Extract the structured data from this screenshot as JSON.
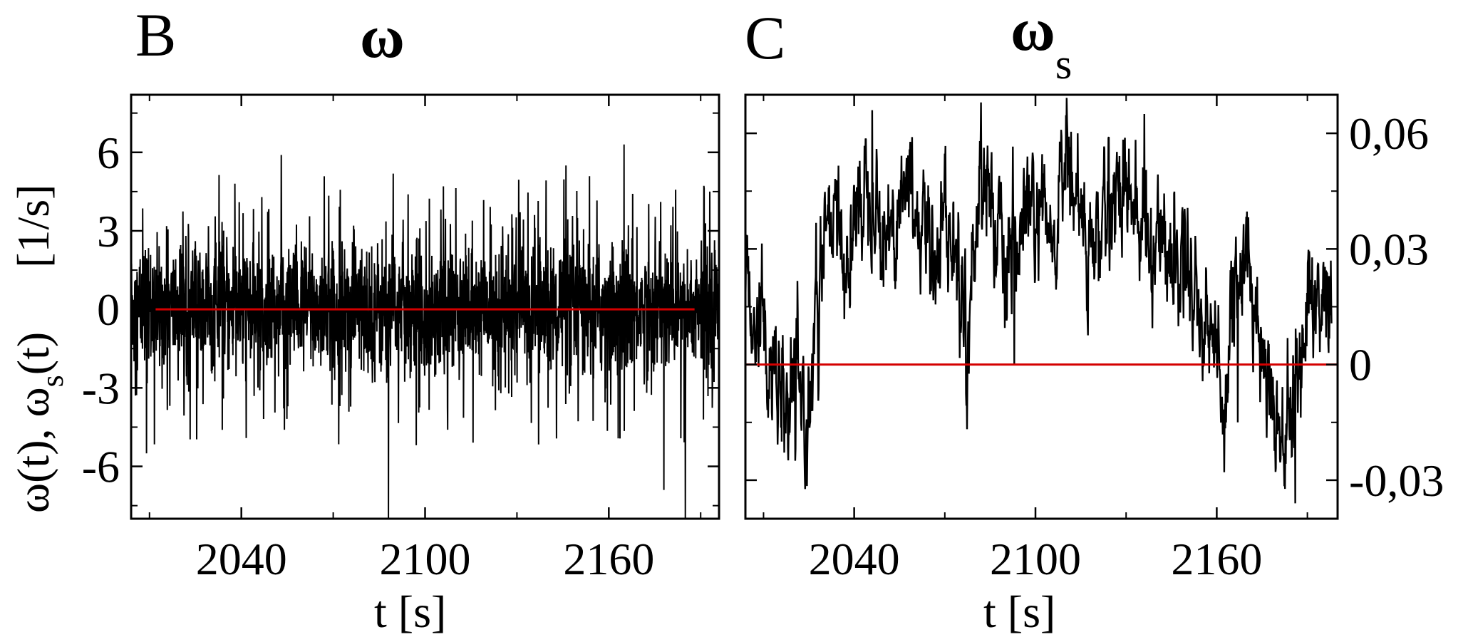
{
  "chart_data": [
    {
      "panel_label": "B",
      "title": "ω",
      "type": "line",
      "ylabel_parts": [
        "ω(t), ω",
        "s",
        "(t)",
        "[1/s]"
      ],
      "xlabel": "t  [s]",
      "xlim": [
        2004,
        2196
      ],
      "ylim": [
        -8,
        8.2
      ],
      "x_ticks": [
        2040,
        2100,
        2160
      ],
      "x_tick_labels": [
        "2040",
        "2100",
        "2160"
      ],
      "y_ticks": [
        6,
        3,
        0,
        -3,
        -6
      ],
      "y_tick_labels": [
        "6",
        "3",
        "0",
        "-3",
        "-6"
      ],
      "y_axis_side": "left",
      "series": [
        {
          "color": "#000000",
          "description_free": true,
          "x_range": [
            2004,
            2196
          ],
          "mean": 0.0,
          "typical_band": [
            -3,
            3
          ],
          "extremes": [
            {
              "x": 2009,
              "y": -5.5
            },
            {
              "x": 2053,
              "y": 5.9
            },
            {
              "x": 2088,
              "y": -8.0
            },
            {
              "x": 2106,
              "y": 4.7
            },
            {
              "x": 2146,
              "y": 5.5
            },
            {
              "x": 2165,
              "y": 6.3
            },
            {
              "x": 2178,
              "y": -6.9
            },
            {
              "x": 2185,
              "y": -8.0
            },
            {
              "x": 2193,
              "y": 4.5
            }
          ]
        },
        {
          "color": "#d40000",
          "x": [
            2012,
            2188
          ],
          "y": [
            0,
            0
          ]
        }
      ]
    },
    {
      "panel_label": "C",
      "title_parts": [
        "ω",
        "s"
      ],
      "type": "line",
      "xlabel": "t   [s]",
      "xlim": [
        2004,
        2200
      ],
      "ylim": [
        -0.04,
        0.07
      ],
      "x_ticks": [
        2040,
        2100,
        2160
      ],
      "x_tick_labels": [
        "2040",
        "2100",
        "2160"
      ],
      "y_ticks": [
        0.06,
        0.03,
        0,
        -0.03
      ],
      "y_tick_labels": [
        "0,06",
        "0,03",
        "0",
        "-0,03"
      ],
      "y_axis_side": "right",
      "series": [
        {
          "color": "#000000",
          "anchors": [
            [
              2004,
              0.02
            ],
            [
              2008,
              0.015
            ],
            [
              2012,
              0.002
            ],
            [
              2016,
              -0.012
            ],
            [
              2020,
              -0.01
            ],
            [
              2024,
              -0.015
            ],
            [
              2027,
              0.005
            ],
            [
              2030,
              0.03
            ],
            [
              2034,
              0.035
            ],
            [
              2038,
              0.025
            ],
            [
              2042,
              0.045
            ],
            [
              2046,
              0.05
            ],
            [
              2050,
              0.03
            ],
            [
              2054,
              0.04
            ],
            [
              2058,
              0.048
            ],
            [
              2062,
              0.035
            ],
            [
              2066,
              0.03
            ],
            [
              2070,
              0.04
            ],
            [
              2074,
              0.025
            ],
            [
              2078,
              0.01
            ],
            [
              2082,
              0.055
            ],
            [
              2086,
              0.04
            ],
            [
              2090,
              0.02
            ],
            [
              2094,
              0.03
            ],
            [
              2098,
              0.04
            ],
            [
              2102,
              0.035
            ],
            [
              2106,
              0.03
            ],
            [
              2110,
              0.055
            ],
            [
              2114,
              0.04
            ],
            [
              2118,
              0.028
            ],
            [
              2122,
              0.035
            ],
            [
              2126,
              0.045
            ],
            [
              2130,
              0.05
            ],
            [
              2134,
              0.035
            ],
            [
              2138,
              0.03
            ],
            [
              2142,
              0.035
            ],
            [
              2146,
              0.025
            ],
            [
              2150,
              0.03
            ],
            [
              2154,
              0.015
            ],
            [
              2158,
              0.01
            ],
            [
              2162,
              -0.01
            ],
            [
              2166,
              0.02
            ],
            [
              2170,
              0.025
            ],
            [
              2174,
              0.01
            ],
            [
              2178,
              -0.005
            ],
            [
              2182,
              -0.02
            ],
            [
              2186,
              -0.01
            ],
            [
              2190,
              0.02
            ],
            [
              2194,
              0.015
            ],
            [
              2198,
              0.02
            ]
          ],
          "peaks": [
            {
              "x": 2046,
              "y": 0.066
            },
            {
              "x": 2082,
              "y": 0.068
            },
            {
              "x": 2114,
              "y": 0.06
            },
            {
              "x": 2136,
              "y": 0.065
            },
            {
              "x": 2093,
              "y": 0.0
            },
            {
              "x": 2167,
              "y": -0.015
            },
            {
              "x": 2186,
              "y": -0.036
            },
            {
              "x": 2016,
              "y": -0.02
            }
          ],
          "noise_amplitude": 0.012
        },
        {
          "color": "#d40000",
          "x": [
            2004,
            2200
          ],
          "y": [
            0,
            0
          ]
        }
      ]
    }
  ]
}
